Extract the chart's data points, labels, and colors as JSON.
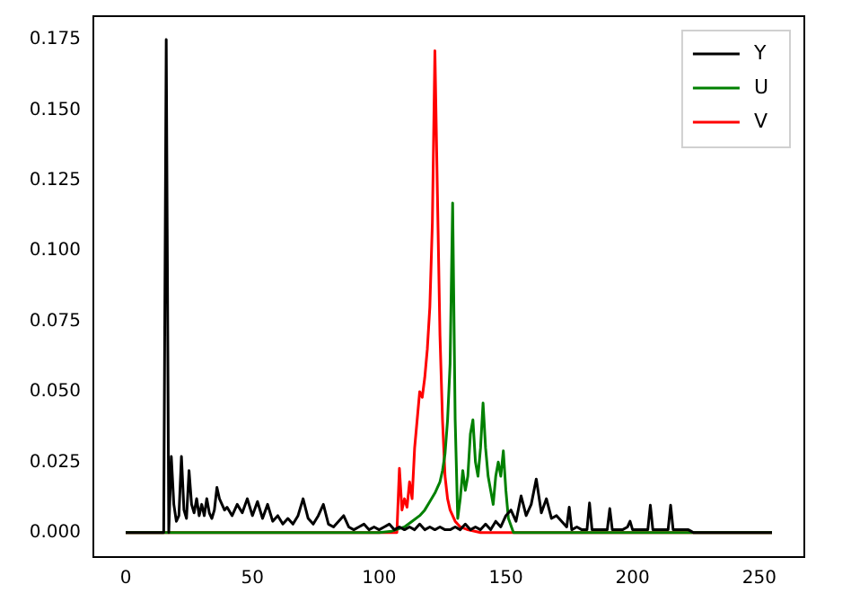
{
  "chart_data": {
    "type": "line",
    "xlim": [
      -12.75,
      267.75
    ],
    "ylim": [
      -0.0087,
      0.1833
    ],
    "xticks": [
      0,
      50,
      100,
      150,
      200,
      250
    ],
    "yticks": [
      {
        "value": 0,
        "label": "0.000"
      },
      {
        "value": 0.025,
        "label": "0.025"
      },
      {
        "value": 0.05,
        "label": "0.050"
      },
      {
        "value": 0.075,
        "label": "0.075"
      },
      {
        "value": 0.1,
        "label": "0.100"
      },
      {
        "value": 0.125,
        "label": "0.125"
      },
      {
        "value": 0.15,
        "label": "0.150"
      },
      {
        "value": 0.175,
        "label": "0.175"
      }
    ],
    "grid": false,
    "legend": "top right",
    "marker": "none",
    "line_style": "solid",
    "series": [
      {
        "name": "Y",
        "color": "#000000",
        "x": [
          0,
          14,
          15,
          16,
          17,
          18,
          19,
          20,
          21,
          22,
          23,
          24,
          25,
          26,
          27,
          28,
          29,
          30,
          31,
          32,
          33,
          34,
          35,
          36,
          37,
          38,
          39,
          40,
          42,
          44,
          46,
          48,
          50,
          52,
          54,
          56,
          58,
          60,
          62,
          64,
          66,
          68,
          70,
          72,
          74,
          76,
          78,
          80,
          82,
          84,
          86,
          88,
          90,
          92,
          94,
          96,
          98,
          100,
          102,
          104,
          106,
          108,
          110,
          112,
          114,
          116,
          118,
          120,
          122,
          124,
          126,
          128,
          130,
          132,
          134,
          136,
          138,
          140,
          142,
          144,
          146,
          148,
          150,
          152,
          154,
          156,
          158,
          160,
          162,
          164,
          166,
          168,
          170,
          172,
          174,
          175,
          176,
          178,
          180,
          182,
          183,
          184,
          186,
          188,
          190,
          191,
          192,
          194,
          196,
          198,
          199,
          200,
          202,
          204,
          206,
          207,
          208,
          210,
          212,
          214,
          215,
          216,
          218,
          220,
          222,
          223,
          224,
          255
        ],
        "values": [
          0,
          0,
          0,
          0.175,
          0,
          0.027,
          0.01,
          0.004,
          0.006,
          0.027,
          0.008,
          0.005,
          0.022,
          0.01,
          0.007,
          0.012,
          0.006,
          0.01,
          0.006,
          0.012,
          0.007,
          0.005,
          0.008,
          0.016,
          0.012,
          0.01,
          0.008,
          0.009,
          0.006,
          0.01,
          0.007,
          0.012,
          0.006,
          0.011,
          0.005,
          0.01,
          0.004,
          0.006,
          0.003,
          0.005,
          0.003,
          0.006,
          0.012,
          0.005,
          0.003,
          0.006,
          0.01,
          0.003,
          0.002,
          0.004,
          0.006,
          0.002,
          0.001,
          0.002,
          0.003,
          0.001,
          0.002,
          0.001,
          0.002,
          0.003,
          0.001,
          0.002,
          0.001,
          0.002,
          0.001,
          0.003,
          0.001,
          0.002,
          0.001,
          0.002,
          0.001,
          0.001,
          0.002,
          0.001,
          0.003,
          0.001,
          0.002,
          0.001,
          0.003,
          0.001,
          0.004,
          0.002,
          0.006,
          0.008,
          0.004,
          0.013,
          0.006,
          0.01,
          0.019,
          0.007,
          0.012,
          0.005,
          0.006,
          0.004,
          0.002,
          0.009,
          0.001,
          0.002,
          0.001,
          0.001,
          0.0105,
          0.001,
          0.001,
          0.001,
          0.001,
          0.0085,
          0.001,
          0.001,
          0.001,
          0.002,
          0.004,
          0.001,
          0.001,
          0.001,
          0.001,
          0.0097,
          0.001,
          0.001,
          0.001,
          0.001,
          0.0097,
          0.001,
          0.001,
          0.001,
          0.001,
          0.0005,
          0,
          0
        ]
      },
      {
        "name": "U",
        "color": "#008000",
        "x": [
          0,
          100,
          105,
          110,
          113,
          116,
          118,
          120,
          122,
          124,
          125,
          126,
          127,
          128,
          129,
          130,
          131,
          132,
          133,
          134,
          135,
          136,
          137,
          138,
          139,
          140,
          141,
          142,
          143,
          144,
          145,
          146,
          147,
          148,
          149,
          150,
          151,
          153,
          255
        ],
        "values": [
          0,
          0,
          0.0005,
          0.002,
          0.004,
          0.006,
          0.008,
          0.011,
          0.014,
          0.018,
          0.022,
          0.028,
          0.04,
          0.06,
          0.117,
          0.04,
          0.005,
          0.012,
          0.022,
          0.015,
          0.02,
          0.035,
          0.04,
          0.025,
          0.02,
          0.03,
          0.046,
          0.03,
          0.02,
          0.015,
          0.01,
          0.02,
          0.025,
          0.02,
          0.029,
          0.015,
          0.005,
          0,
          0
        ]
      },
      {
        "name": "V",
        "color": "#ff0000",
        "x": [
          0,
          107,
          108,
          109,
          110,
          111,
          112,
          113,
          114,
          115,
          116,
          117,
          118,
          119,
          120,
          121,
          122,
          123,
          124,
          125,
          126,
          127,
          128,
          130,
          132,
          135,
          140,
          255
        ],
        "values": [
          0,
          0,
          0.0228,
          0.008,
          0.012,
          0.009,
          0.018,
          0.012,
          0.03,
          0.04,
          0.05,
          0.048,
          0.055,
          0.065,
          0.08,
          0.11,
          0.171,
          0.12,
          0.07,
          0.04,
          0.02,
          0.012,
          0.008,
          0.004,
          0.002,
          0.001,
          0,
          0
        ]
      }
    ]
  }
}
